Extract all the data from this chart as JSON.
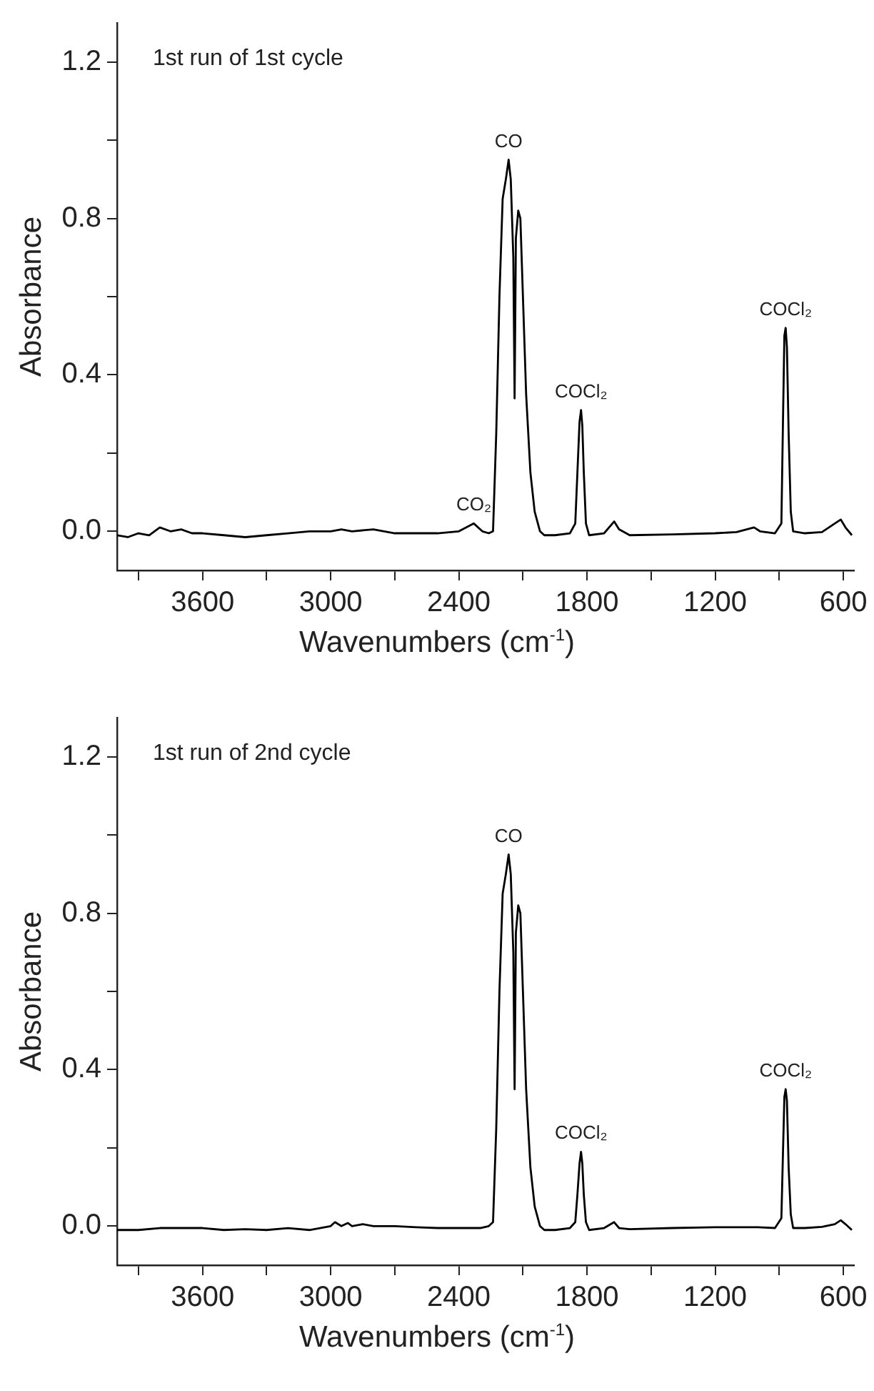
{
  "chart_data": [
    {
      "type": "line",
      "xlabel": "Wavenumbers (cm$^{-1}$)",
      "ylabel": "Absorbance",
      "xlim": [
        4000,
        550
      ],
      "ylim": [
        -0.1,
        1.3
      ],
      "xticks": [
        {
          "value": 3900,
          "label": null
        },
        3600,
        {
          "value": 3300,
          "label": null
        },
        3000,
        {
          "value": 2700,
          "label": null
        },
        2400,
        {
          "value": 2100,
          "label": null
        },
        1800,
        {
          "value": 1500,
          "label": null
        },
        1200,
        {
          "value": 900,
          "label": null
        },
        600
      ],
      "yticks": [
        {
          "value": 0,
          "label": "0.0"
        },
        {
          "value": 0.2,
          "label": null
        },
        0.4,
        {
          "value": 0.6,
          "label": null
        },
        0.8,
        {
          "value": 1.0,
          "label": null
        },
        1.2
      ],
      "grid": false,
      "legend": false,
      "marker": "none",
      "line_style": "solid",
      "annotations": [
        "1st run of 1st cycle",
        {
          "text": "CO",
          "x": 2167,
          "y": 0.95
        },
        {
          "text": "COCl₂",
          "x": 1828,
          "y": 0.31
        },
        {
          "text": "COCl₂",
          "x": 870,
          "y": 0.52
        },
        {
          "text": "CO₂",
          "x": 2330,
          "y": 0.02
        }
      ],
      "series": [
        {
          "color": "#000000",
          "x": [
            4000,
            3950,
            3900,
            3850,
            3800,
            3750,
            3700,
            3650,
            3600,
            3500,
            3400,
            3300,
            3200,
            3100,
            3000,
            2950,
            2900,
            2800,
            2700,
            2600,
            2500,
            2400,
            2330,
            2290,
            2260,
            2240,
            2225,
            2210,
            2195,
            2180,
            2167,
            2157,
            2145,
            2139,
            2133,
            2122,
            2112,
            2100,
            2085,
            2065,
            2045,
            2020,
            2000,
            1950,
            1880,
            1855,
            1845,
            1835,
            1828,
            1822,
            1815,
            1805,
            1790,
            1720,
            1673,
            1650,
            1600,
            1400,
            1200,
            1100,
            1018,
            990,
            920,
            890,
            882,
            876,
            870,
            864,
            856,
            846,
            835,
            780,
            700,
            640,
            612,
            590,
            560
          ],
          "values": [
            -0.01,
            -0.015,
            -0.005,
            -0.01,
            0.01,
            0.0,
            0.005,
            -0.005,
            -0.005,
            -0.01,
            -0.015,
            -0.01,
            -0.005,
            0.0,
            0.0,
            0.005,
            0.0,
            0.005,
            -0.005,
            -0.005,
            -0.005,
            0.0,
            0.02,
            0.0,
            -0.005,
            0.0,
            0.25,
            0.6,
            0.85,
            0.9,
            0.95,
            0.9,
            0.7,
            0.34,
            0.75,
            0.82,
            0.8,
            0.6,
            0.35,
            0.15,
            0.05,
            0.0,
            -0.01,
            -0.01,
            -0.005,
            0.02,
            0.15,
            0.28,
            0.31,
            0.27,
            0.15,
            0.02,
            -0.01,
            -0.005,
            0.025,
            0.005,
            -0.01,
            -0.008,
            -0.005,
            -0.002,
            0.01,
            0.0,
            -0.005,
            0.02,
            0.3,
            0.5,
            0.52,
            0.47,
            0.25,
            0.05,
            0.0,
            -0.005,
            -0.002,
            0.02,
            0.03,
            0.01,
            -0.01
          ]
        }
      ]
    },
    {
      "type": "line",
      "xlabel": "Wavenumbers (cm$^{-1}$)",
      "ylabel": "Absorbance",
      "xlim": [
        4000,
        550
      ],
      "ylim": [
        -0.1,
        1.3
      ],
      "xticks": [
        {
          "value": 3900,
          "label": null
        },
        3600,
        {
          "value": 3300,
          "label": null
        },
        3000,
        {
          "value": 2700,
          "label": null
        },
        2400,
        {
          "value": 2100,
          "label": null
        },
        1800,
        {
          "value": 1500,
          "label": null
        },
        1200,
        {
          "value": 900,
          "label": null
        },
        600
      ],
      "yticks": [
        {
          "value": 0,
          "label": "0.0"
        },
        {
          "value": 0.2,
          "label": null
        },
        0.4,
        {
          "value": 0.6,
          "label": null
        },
        0.8,
        {
          "value": 1.0,
          "label": null
        },
        1.2
      ],
      "grid": false,
      "legend": false,
      "marker": "none",
      "line_style": "solid",
      "annotations": [
        "1st run of 2nd cycle",
        {
          "text": "CO",
          "x": 2167,
          "y": 0.95
        },
        {
          "text": "COCl₂",
          "x": 1828,
          "y": 0.19
        },
        {
          "text": "COCl₂",
          "x": 870,
          "y": 0.35
        }
      ],
      "series": [
        {
          "color": "#000000",
          "x": [
            4000,
            3900,
            3800,
            3700,
            3600,
            3500,
            3400,
            3300,
            3200,
            3100,
            3000,
            2980,
            2950,
            2920,
            2900,
            2850,
            2800,
            2700,
            2600,
            2500,
            2400,
            2300,
            2260,
            2240,
            2225,
            2210,
            2195,
            2180,
            2167,
            2157,
            2145,
            2139,
            2133,
            2122,
            2112,
            2100,
            2085,
            2065,
            2045,
            2020,
            2000,
            1950,
            1880,
            1855,
            1845,
            1835,
            1828,
            1822,
            1815,
            1805,
            1790,
            1720,
            1673,
            1650,
            1600,
            1400,
            1200,
            1100,
            1000,
            920,
            890,
            882,
            876,
            870,
            864,
            856,
            846,
            835,
            780,
            700,
            640,
            612,
            590,
            560
          ],
          "values": [
            -0.01,
            -0.01,
            -0.005,
            -0.005,
            -0.005,
            -0.01,
            -0.008,
            -0.01,
            -0.005,
            -0.01,
            0.0,
            0.01,
            0.0,
            0.008,
            0.0,
            0.005,
            0.0,
            0.0,
            -0.003,
            -0.005,
            -0.005,
            -0.005,
            0.0,
            0.01,
            0.25,
            0.6,
            0.85,
            0.9,
            0.95,
            0.9,
            0.7,
            0.35,
            0.75,
            0.82,
            0.8,
            0.6,
            0.35,
            0.15,
            0.05,
            0.0,
            -0.01,
            -0.01,
            -0.005,
            0.01,
            0.08,
            0.16,
            0.19,
            0.16,
            0.08,
            0.01,
            -0.01,
            -0.005,
            0.01,
            -0.005,
            -0.008,
            -0.005,
            -0.003,
            -0.003,
            -0.003,
            -0.005,
            0.02,
            0.2,
            0.33,
            0.35,
            0.32,
            0.15,
            0.03,
            -0.005,
            -0.005,
            -0.002,
            0.005,
            0.015,
            0.005,
            -0.01
          ]
        }
      ]
    }
  ]
}
